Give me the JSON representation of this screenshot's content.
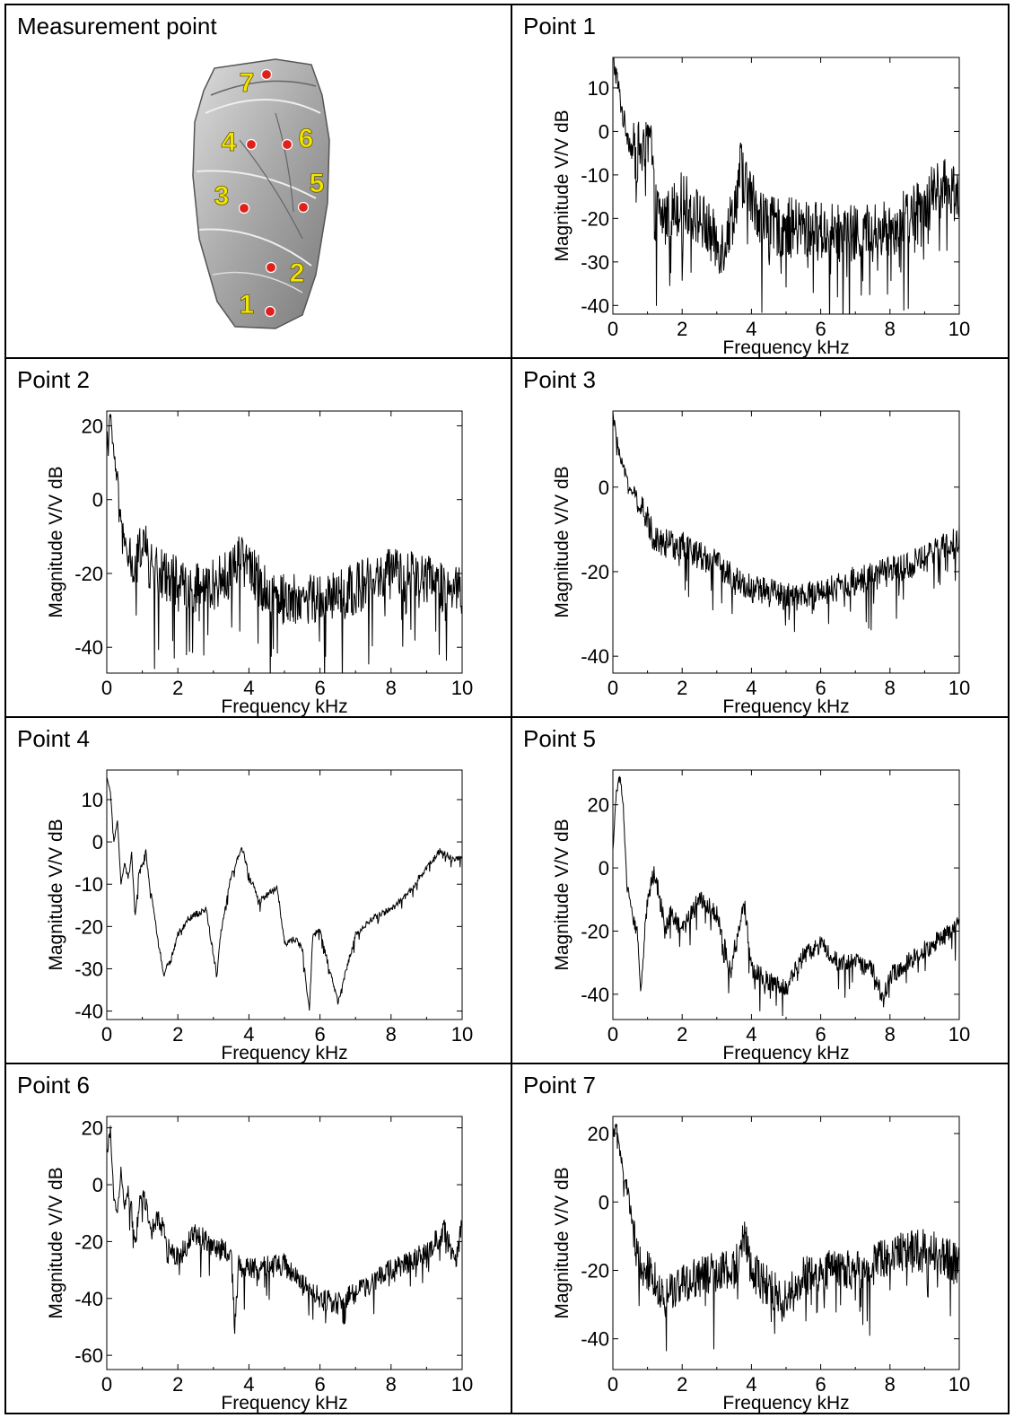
{
  "panels": [
    {
      "title": "Measurement point"
    },
    {
      "title": "Point 1"
    },
    {
      "title": "Point 2"
    },
    {
      "title": "Point 3"
    },
    {
      "title": "Point 4"
    },
    {
      "title": "Point 5"
    },
    {
      "title": "Point 6"
    },
    {
      "title": "Point 7"
    }
  ],
  "measurement_labels": [
    "1",
    "2",
    "3",
    "4",
    "5",
    "6",
    "7"
  ],
  "colors": {
    "line": "#000000",
    "marker": "#e0201c",
    "marker_label": "#f2e600",
    "specimen": "#9a9a9a"
  },
  "chart_data": [
    {
      "type": "line",
      "panel": "Point 1",
      "xlabel": "Frequency kHz",
      "ylabel": "Magnitude V/V dB",
      "xlim": [
        0,
        10
      ],
      "ylim": [
        -42,
        17
      ],
      "xticks": [
        "0",
        "2",
        "4",
        "6",
        "8",
        "10"
      ],
      "yticks": [
        "10",
        "0",
        "-10",
        "-20",
        "-30",
        "-40"
      ],
      "ytickvals": [
        10,
        0,
        -10,
        -20,
        -30,
        -40
      ],
      "series": [
        {
          "x": [
            0,
            0.1,
            0.2,
            0.3,
            0.4,
            0.5,
            0.6,
            0.7,
            0.8,
            0.9,
            1.0,
            1.1,
            1.2,
            1.5,
            2.0,
            2.5,
            3.0,
            3.2,
            3.5,
            3.7,
            3.9,
            4.5,
            5.0,
            6.0,
            7.0,
            8.0,
            8.5,
            9.0,
            9.5,
            10.0
          ],
          "y": [
            16,
            13,
            8,
            3,
            0,
            -3,
            -5,
            -5,
            -4,
            -6,
            -4,
            -2,
            -18,
            -20,
            -16,
            -20,
            -26,
            -26,
            -18,
            -8,
            -14,
            -22,
            -22,
            -23,
            -24,
            -22,
            -20,
            -16,
            -13,
            -14
          ],
          "noise": 7
        }
      ]
    },
    {
      "type": "line",
      "panel": "Point 2",
      "xlabel": "Frequency kHz",
      "ylabel": "Magnitude V/V dB",
      "xlim": [
        0,
        10
      ],
      "ylim": [
        -47,
        24
      ],
      "xticks": [
        "0",
        "2",
        "4",
        "6",
        "8",
        "10"
      ],
      "yticks": [
        "20",
        "0",
        "-20",
        "-40"
      ],
      "ytickvals": [
        20,
        0,
        -20,
        -40
      ],
      "series": [
        {
          "x": [
            0,
            0.1,
            0.2,
            0.3,
            0.4,
            0.5,
            0.6,
            0.8,
            1.0,
            1.2,
            1.5,
            2.0,
            2.5,
            3.0,
            3.5,
            3.8,
            4.0,
            4.5,
            5.0,
            6.0,
            7.0,
            8.0,
            9.0,
            10.0
          ],
          "y": [
            15,
            22,
            12,
            5,
            -5,
            -12,
            -15,
            -20,
            -10,
            -18,
            -20,
            -22,
            -24,
            -23,
            -20,
            -12,
            -18,
            -25,
            -27,
            -27,
            -24,
            -20,
            -22,
            -25
          ],
          "noise": 7
        }
      ]
    },
    {
      "type": "line",
      "panel": "Point 3",
      "xlabel": "Frequency kHz",
      "ylabel": "Magnitude V/V dB",
      "xlim": [
        0,
        10
      ],
      "ylim": [
        -44,
        18
      ],
      "xticks": [
        "0",
        "2",
        "4",
        "6",
        "8",
        "10"
      ],
      "yticks": [
        "0",
        "-20",
        "-40"
      ],
      "ytickvals": [
        0,
        -20,
        -40
      ],
      "series": [
        {
          "x": [
            0,
            0.1,
            0.2,
            0.4,
            0.6,
            0.8,
            1.0,
            1.2,
            1.5,
            2.0,
            2.5,
            3.0,
            3.5,
            4.0,
            4.5,
            5.0,
            5.5,
            6.0,
            7.0,
            8.0,
            9.0,
            10.0
          ],
          "y": [
            17,
            12,
            7,
            2,
            -2,
            -5,
            -8,
            -12,
            -13,
            -14,
            -16,
            -18,
            -22,
            -24,
            -25,
            -26,
            -26,
            -25,
            -22,
            -20,
            -17,
            -12
          ],
          "noise": 3.5
        }
      ]
    },
    {
      "type": "line",
      "panel": "Point 4",
      "xlabel": "Frequency kHz",
      "ylabel": "Magnitude V/V dB",
      "xlim": [
        0,
        10
      ],
      "ylim": [
        -42,
        17
      ],
      "xticks": [
        "0",
        "2",
        "4",
        "6",
        "8",
        "10"
      ],
      "yticks": [
        "10",
        "0",
        "-10",
        "-20",
        "-30",
        "-40"
      ],
      "ytickvals": [
        10,
        0,
        -10,
        -20,
        -30,
        -40
      ],
      "series": [
        {
          "x": [
            0,
            0.1,
            0.2,
            0.3,
            0.4,
            0.5,
            0.6,
            0.7,
            0.8,
            0.9,
            1.0,
            1.1,
            1.2,
            1.5,
            1.6,
            1.8,
            2.0,
            2.3,
            2.8,
            3.1,
            3.2,
            3.5,
            3.8,
            4.0,
            4.3,
            4.6,
            4.8,
            5.0,
            5.3,
            5.5,
            5.7,
            5.8,
            6.0,
            6.2,
            6.5,
            7.0,
            7.5,
            8.0,
            8.5,
            9.0,
            9.4,
            9.7,
            10.0
          ],
          "y": [
            15,
            12,
            0,
            5,
            -10,
            -5,
            -8,
            -3,
            -18,
            -8,
            -5,
            -2,
            -10,
            -26,
            -31,
            -28,
            -22,
            -18,
            -16,
            -32,
            -22,
            -8,
            -1,
            -8,
            -14,
            -12,
            -11,
            -24,
            -23,
            -25,
            -40,
            -22,
            -21,
            -28,
            -38,
            -22,
            -18,
            -16,
            -12,
            -6,
            -2,
            -4,
            -4
          ],
          "noise": 0.8
        }
      ]
    },
    {
      "type": "line",
      "panel": "Point 5",
      "xlabel": "Frequency kHz",
      "ylabel": "Magnitude V/V dB",
      "xlim": [
        0,
        10
      ],
      "ylim": [
        -48,
        31
      ],
      "xticks": [
        "0",
        "2",
        "4",
        "6",
        "8",
        "10"
      ],
      "yticks": [
        "20",
        "0",
        "-20",
        "-40"
      ],
      "ytickvals": [
        20,
        0,
        -20,
        -40
      ],
      "series": [
        {
          "x": [
            0,
            0.1,
            0.2,
            0.3,
            0.4,
            0.5,
            0.6,
            0.7,
            0.8,
            1.0,
            1.2,
            1.5,
            1.7,
            2.0,
            2.5,
            3.0,
            3.4,
            3.6,
            3.8,
            4.0,
            4.5,
            5.0,
            5.5,
            6.0,
            6.5,
            7.0,
            7.5,
            7.8,
            8.0,
            9.0,
            10.0
          ],
          "y": [
            5,
            25,
            29,
            20,
            -5,
            -10,
            -18,
            -20,
            -38,
            -10,
            -1,
            -18,
            -14,
            -20,
            -9,
            -15,
            -33,
            -20,
            -12,
            -32,
            -36,
            -38,
            -28,
            -24,
            -30,
            -30,
            -32,
            -42,
            -34,
            -26,
            -18
          ],
          "noise": 3
        }
      ]
    },
    {
      "type": "line",
      "panel": "Point 6",
      "xlabel": "Frequency kHz",
      "ylabel": "Magnitude V/V dB",
      "xlim": [
        0,
        10
      ],
      "ylim": [
        -65,
        24
      ],
      "xticks": [
        "0",
        "2",
        "4",
        "6",
        "8",
        "10"
      ],
      "yticks": [
        "20",
        "0",
        "-20",
        "-40",
        "-60"
      ],
      "ytickvals": [
        20,
        0,
        -20,
        -40,
        -60
      ],
      "series": [
        {
          "x": [
            0,
            0.1,
            0.2,
            0.3,
            0.4,
            0.5,
            0.6,
            0.8,
            1.0,
            1.2,
            1.5,
            1.7,
            2.0,
            2.5,
            3.0,
            3.5,
            3.6,
            3.7,
            4.0,
            5.0,
            5.5,
            6.0,
            6.5,
            7.0,
            8.0,
            9.0,
            9.5,
            9.8,
            10.0
          ],
          "y": [
            10,
            20,
            -5,
            -10,
            5,
            -8,
            0,
            -20,
            0,
            -15,
            -12,
            -22,
            -26,
            -17,
            -22,
            -24,
            -50,
            -28,
            -30,
            -28,
            -35,
            -40,
            -42,
            -38,
            -30,
            -24,
            -16,
            -28,
            -14
          ],
          "noise": 4
        }
      ]
    },
    {
      "type": "line",
      "panel": "Point 7",
      "xlabel": "Frequency kHz",
      "ylabel": "Magnitude V/V dB",
      "xlim": [
        0,
        10
      ],
      "ylim": [
        -49,
        25
      ],
      "xticks": [
        "0",
        "2",
        "4",
        "6",
        "8",
        "10"
      ],
      "yticks": [
        "20",
        "0",
        "-20",
        "-40"
      ],
      "ytickvals": [
        20,
        0,
        -20,
        -40
      ],
      "series": [
        {
          "x": [
            0,
            0.1,
            0.2,
            0.3,
            0.4,
            0.5,
            0.6,
            0.8,
            1.0,
            1.5,
            2.0,
            2.5,
            3.0,
            3.5,
            3.8,
            4.0,
            4.5,
            5.0,
            5.5,
            6.0,
            7.0,
            8.0,
            8.5,
            9.0,
            9.5,
            10.0
          ],
          "y": [
            20,
            22,
            15,
            8,
            5,
            -2,
            -10,
            -18,
            -20,
            -28,
            -24,
            -22,
            -20,
            -20,
            -10,
            -20,
            -25,
            -28,
            -22,
            -20,
            -20,
            -16,
            -14,
            -12,
            -16,
            -18
          ],
          "noise": 6
        }
      ]
    }
  ]
}
